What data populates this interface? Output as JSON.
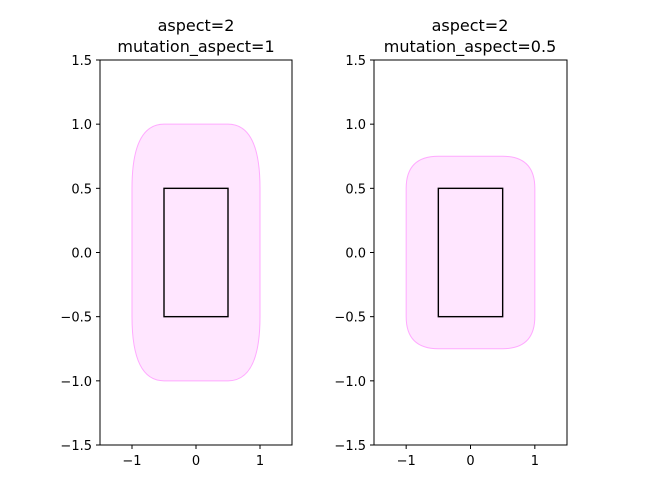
{
  "chart_data": [
    {
      "type": "area",
      "title_lines": [
        "aspect=2",
        "mutation_aspect=1"
      ],
      "xlim": [
        -1.5,
        1.5
      ],
      "ylim": [
        -1.5,
        1.5
      ],
      "xticks": [
        -1,
        0,
        1
      ],
      "xtick_labels": [
        "−1",
        "0",
        "1"
      ],
      "yticks": [
        -1.5,
        -1.0,
        -0.5,
        0.0,
        0.5,
        1.0,
        1.5
      ],
      "ytick_labels": [
        "−1.5",
        "−1.0",
        "−0.5",
        "0.0",
        "0.5",
        "1.0",
        "1.5"
      ],
      "rectangle": {
        "x": [
          -0.5,
          0.5
        ],
        "y": [
          -0.5,
          0.5
        ]
      },
      "fancy_box": {
        "x": [
          -1.0,
          1.0
        ],
        "y": [
          -1.0,
          1.0
        ],
        "corner_radius_x": 0.5,
        "corner_radius_y": 0.5
      },
      "grid": false
    },
    {
      "type": "area",
      "title_lines": [
        "aspect=2",
        "mutation_aspect=0.5"
      ],
      "xlim": [
        -1.5,
        1.5
      ],
      "ylim": [
        -1.5,
        1.5
      ],
      "xticks": [
        -1,
        0,
        1
      ],
      "xtick_labels": [
        "−1",
        "0",
        "1"
      ],
      "yticks": [
        -1.5,
        -1.0,
        -0.5,
        0.0,
        0.5,
        1.0,
        1.5
      ],
      "ytick_labels": [
        "−1.5",
        "−1.0",
        "−0.5",
        "0.0",
        "0.5",
        "1.0",
        "1.5"
      ],
      "rectangle": {
        "x": [
          -0.5,
          0.5
        ],
        "y": [
          -0.5,
          0.5
        ]
      },
      "fancy_box": {
        "x": [
          -1.0,
          1.0
        ],
        "y": [
          -0.75,
          0.75
        ],
        "corner_radius_x": 0.5,
        "corner_radius_y": 0.25
      },
      "grid": false
    }
  ],
  "colors": {
    "box_fill": "#ffe6ff",
    "box_edge": "#ffaaff",
    "rect_edge": "#000000",
    "axes": "#000000"
  }
}
